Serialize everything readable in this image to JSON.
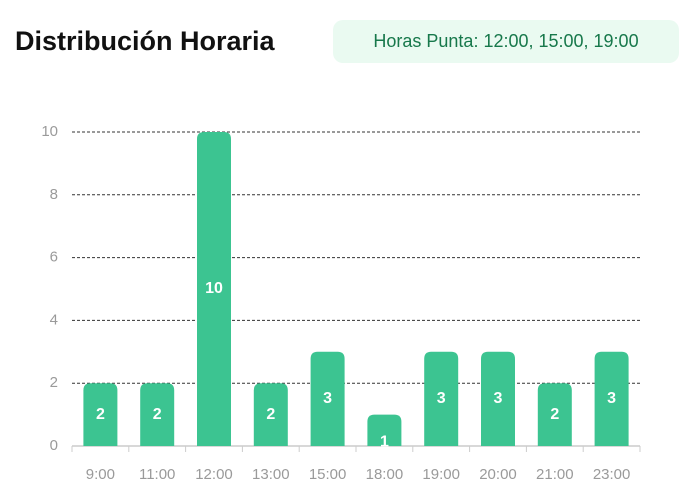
{
  "chart_data": {
    "type": "bar",
    "title": "Distribución Horaria",
    "badge": "Horas Punta: 12:00, 15:00, 19:00",
    "categories": [
      "9:00",
      "11:00",
      "12:00",
      "13:00",
      "15:00",
      "18:00",
      "19:00",
      "20:00",
      "21:00",
      "23:00"
    ],
    "values": [
      2,
      2,
      10,
      2,
      3,
      1,
      3,
      3,
      2,
      3
    ],
    "color": "#3cc491",
    "ylim": [
      0,
      10
    ],
    "yticks": [
      0,
      2,
      4,
      6,
      8,
      10
    ],
    "grid": true
  }
}
